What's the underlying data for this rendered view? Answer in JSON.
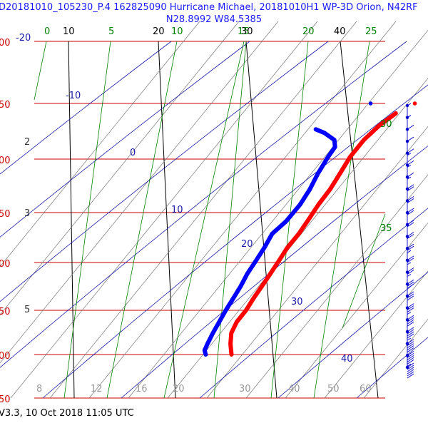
{
  "header": {
    "title_line1": "D20181010_105230_P.4 162825090 Hurricane Michael, 20181010H1 WP-3D Orion, N42RF",
    "title_line2": "N28.8992 W84.5385"
  },
  "footer": {
    "text": "V3.3, 10 Oct 2018  11:05 UTC"
  },
  "colors": {
    "pressure_lines": "#cc0000",
    "temperature_lines": "#000000",
    "dry_adiabats": "#777777",
    "moist_adiabats": "#1a1aaa",
    "mixing_ratio_lines": "#008000",
    "temperature_trace": "#ff0000",
    "dewpoint_trace": "#0000ff",
    "wind_barbs": "#0000cc"
  },
  "chart_data": {
    "type": "line",
    "title": "D20181010_105230_P.4 162825090 Hurricane Michael, 20181010H1 WP-3D Orion, N42RF",
    "pressure_labels": [
      "00",
      "50",
      "00",
      "50",
      "00",
      "50",
      "00",
      "50"
    ],
    "height_labels": [
      "2",
      "3",
      "5"
    ],
    "isotherm_labels": [
      "-20",
      "10",
      "20",
      "30",
      "40"
    ],
    "mixing_ratio_labels": [
      "0",
      "5",
      "10",
      "15",
      "20",
      "25",
      "30",
      "35"
    ],
    "moist_adiabat_labels": [
      "-10",
      "0",
      "10",
      "20",
      "30",
      "40"
    ],
    "bottom_axis_labels": [
      "8",
      "12",
      "16",
      "20",
      "30",
      "40",
      "50",
      "60"
    ],
    "series": [
      {
        "name": "",
        "kind": "temperature",
        "points": [
          [
            28.8,
            1000
          ],
          [
            28.5,
            975
          ],
          [
            28.4,
            950
          ],
          [
            28.8,
            925
          ],
          [
            29.6,
            900
          ],
          [
            30.2,
            875
          ],
          [
            30.9,
            850
          ],
          [
            31.6,
            825
          ],
          [
            32.3,
            800
          ],
          [
            33.0,
            775
          ],
          [
            34.0,
            750
          ],
          [
            34.8,
            725
          ],
          [
            35.6,
            700
          ],
          [
            36.6,
            675
          ],
          [
            37.4,
            650
          ],
          [
            38.2,
            625
          ],
          [
            39.4,
            600
          ],
          [
            40.8,
            580
          ],
          [
            42.4,
            563
          ]
        ]
      },
      {
        "name": "",
        "kind": "dewpoint",
        "points": [
          [
            26.0,
            1000
          ],
          [
            25.8,
            990
          ],
          [
            26.0,
            975
          ],
          [
            26.4,
            950
          ],
          [
            26.9,
            925
          ],
          [
            27.4,
            900
          ],
          [
            28.0,
            875
          ],
          [
            28.6,
            850
          ],
          [
            29.1,
            825
          ],
          [
            29.8,
            800
          ],
          [
            30.5,
            775
          ],
          [
            31.1,
            750
          ],
          [
            32.4,
            728
          ],
          [
            33.6,
            700
          ],
          [
            34.4,
            675
          ],
          [
            35.0,
            650
          ],
          [
            35.8,
            625
          ],
          [
            36.4,
            610
          ],
          [
            36.2,
            600
          ],
          [
            35.0,
            590
          ],
          [
            34.0,
            585
          ]
        ]
      },
      {
        "name": "",
        "kind": "temperature-marker",
        "points": [
          [
            44.3,
            550
          ]
        ]
      },
      {
        "name": "",
        "kind": "dewpoint-marker",
        "points": [
          [
            39.5,
            550
          ]
        ]
      }
    ],
    "wind_barb_speeds_kt": [
      5,
      5,
      10,
      10,
      15,
      15,
      15,
      20,
      20,
      20,
      20,
      20,
      25,
      25,
      25,
      30,
      30,
      35,
      40,
      45,
      50,
      55,
      60
    ]
  }
}
